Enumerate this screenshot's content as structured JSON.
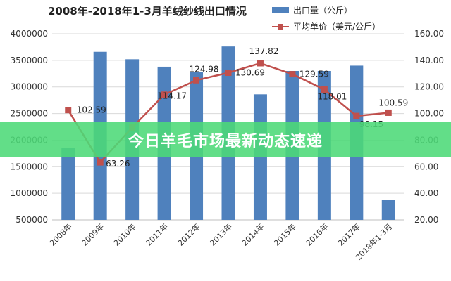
{
  "chart_data": {
    "type": "bar+line",
    "title": "2008年-2018年1-3月羊绒纱线出口情况",
    "categories": [
      "2008年",
      "2009年",
      "2010年",
      "2011年",
      "2012年",
      "2013年",
      "2014年",
      "2015年",
      "2016年",
      "2017年",
      "2018年1-3月"
    ],
    "series": [
      {
        "name": "出口量（公斤）",
        "type": "bar",
        "axis": "left",
        "color": "#4f81bd",
        "values": [
          1860000,
          3660000,
          3520000,
          3380000,
          3280000,
          3760000,
          2860000,
          3300000,
          3300000,
          3400000,
          880000
        ]
      },
      {
        "name": "平均单价（美元/公斤）",
        "type": "line",
        "axis": "right",
        "color": "#c0504d",
        "values": [
          102.59,
          63.26,
          89.5,
          114.17,
          124.98,
          130.69,
          137.82,
          129.59,
          118.01,
          98.15,
          100.59
        ],
        "data_labels": [
          "102.59",
          "63.26",
          "",
          "114.17",
          "124.98",
          "130.69",
          "137.82",
          "129.59",
          "118.01",
          "98.15",
          "100.59"
        ]
      }
    ],
    "y_left": {
      "ylim": [
        500000,
        4000000
      ],
      "ticks": [
        "500000",
        "1000000",
        "1500000",
        "2000000",
        "2500000",
        "3000000",
        "3500000",
        "4000000"
      ],
      "tick_values": [
        500000,
        1000000,
        1500000,
        2000000,
        2500000,
        3000000,
        3500000,
        4000000
      ]
    },
    "y_right": {
      "ylim": [
        20,
        160
      ],
      "ticks": [
        "20.00",
        "40.00",
        "60.00",
        "80.00",
        "100.00",
        "120.00",
        "140.00",
        "160.00"
      ],
      "tick_values": [
        20,
        40,
        60,
        80,
        100,
        120,
        140,
        160
      ]
    },
    "grid": true,
    "legend_placement": "top-right"
  },
  "banner": {
    "text": "今日羊毛市场最新动态速递",
    "color": "#4cd978"
  }
}
